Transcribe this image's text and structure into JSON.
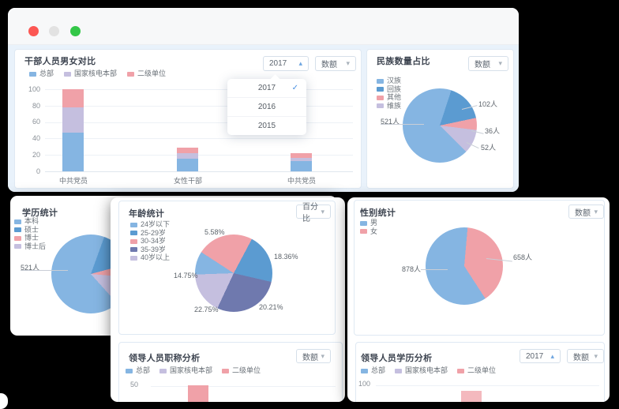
{
  "window": {
    "lights": [
      {
        "name": "close",
        "color": "#fc5753"
      },
      {
        "name": "minimize",
        "color": "#e2e2e2"
      },
      {
        "name": "zoom",
        "color": "#33c748"
      }
    ]
  },
  "icons": {
    "caret_down": "▾",
    "caret_up": "▴",
    "check": "✓"
  },
  "palette": {
    "lightblue": "#85b5e2",
    "blue": "#5b9bd1",
    "pink": "#f0a1a8",
    "purple": "#c5bfdf",
    "indigo": "#6f79ae",
    "accent": "#4a90e2"
  },
  "cards": {
    "compare": {
      "title": "干部人员男女对比",
      "year": "2017",
      "metric": "数额",
      "legend": [
        "总部",
        "国家核电本部",
        "二级单位"
      ],
      "yticks": [
        "100",
        "80",
        "60",
        "40",
        "20",
        "0"
      ],
      "xlabels": [
        "中共党员",
        "女性干部",
        "中共党员"
      ],
      "dropdown": [
        "2017",
        "2016",
        "2015"
      ],
      "dropdown_selected": "2017"
    },
    "ethnic": {
      "title": "民族数量占比",
      "metric": "数额",
      "legend": [
        "汉族",
        "回族",
        "其他",
        "维族"
      ],
      "labels": {
        "han": "521人",
        "hui": "102人",
        "qita": "36人",
        "wei": "52人"
      }
    },
    "education": {
      "title": "学历统计",
      "legend": [
        "本科",
        "硕士",
        "博士",
        "博士后"
      ],
      "label": "521人"
    },
    "age": {
      "title": "年龄统计",
      "metric": "百分比",
      "legend": [
        "24岁以下",
        "25-29岁",
        "30-34岁",
        "35-39岁",
        "40岁以上"
      ],
      "labels": {
        "p3034": "5.58%",
        "p2529": "18.36%",
        "p3539": "20.21%",
        "p40": "22.75%",
        "p24": "14.75%"
      }
    },
    "gender": {
      "title": "性别统计",
      "metric": "数额",
      "legend": [
        "男",
        "女"
      ],
      "labels": {
        "male": "878人",
        "female": "658人"
      }
    },
    "jobtitle": {
      "title": "领导人员职称分析",
      "metric": "数额",
      "legend": [
        "总部",
        "国家核电本部",
        "二级单位"
      ],
      "ytick": "50"
    },
    "eduanalysis": {
      "title": "领导人员学历分析",
      "year": "2017",
      "metric": "数额",
      "legend": [
        "总部",
        "国家核电本部",
        "二级单位"
      ],
      "ytick": "100"
    }
  },
  "pies": {
    "ethnic": [
      {
        "c": "#85b5e2",
        "a0": 0,
        "a1": 18
      },
      {
        "c": "#5b9bd1",
        "a0": 18,
        "a1": 78
      },
      {
        "c": "#f0a1a8",
        "a0": 78,
        "a1": 97
      },
      {
        "c": "#c5bfdf",
        "a0": 97,
        "a1": 135
      },
      {
        "c": "#85b5e2",
        "a0": 135,
        "a1": 360
      }
    ],
    "education": [
      {
        "c": "#85b5e2",
        "a0": 0,
        "a1": 20
      },
      {
        "c": "#5b9bd1",
        "a0": 20,
        "a1": 75
      },
      {
        "c": "#f0a1a8",
        "a0": 75,
        "a1": 95
      },
      {
        "c": "#c5bfdf",
        "a0": 95,
        "a1": 138
      },
      {
        "c": "#85b5e2",
        "a0": 138,
        "a1": 360
      }
    ],
    "age": [
      {
        "c": "#f0a1a8",
        "a0": 0,
        "a1": 28
      },
      {
        "c": "#5b9bd1",
        "a0": 28,
        "a1": 103
      },
      {
        "c": "#6f79ae",
        "a0": 103,
        "a1": 205
      },
      {
        "c": "#c5bfdf",
        "a0": 205,
        "a1": 268
      },
      {
        "c": "#85b5e2",
        "a0": 268,
        "a1": 303
      },
      {
        "c": "#f0a1a8",
        "a0": 303,
        "a1": 360
      }
    ],
    "gender": [
      {
        "c": "#85b5e2",
        "a0": 0,
        "a1": 5
      },
      {
        "c": "#f0a1a8",
        "a0": 5,
        "a1": 147
      },
      {
        "c": "#85b5e2",
        "a0": 147,
        "a1": 360
      }
    ]
  },
  "bars": {
    "compare": {
      "colors": [
        "#85b5e2",
        "#c5bfdf",
        "#f0a1a8"
      ],
      "values": [
        [
          47,
          31,
          22
        ],
        [
          15,
          7,
          7
        ],
        [
          13,
          3,
          6
        ]
      ]
    }
  },
  "chart_data": [
    {
      "id": "cadre-gender-compare",
      "type": "bar",
      "stacked": true,
      "title": "干部人员男女对比",
      "year_filter": "2017",
      "metric_filter": "数额",
      "categories": [
        "中共党员",
        "女性干部",
        "中共党员"
      ],
      "series": [
        {
          "name": "总部",
          "color": "#85b5e2",
          "values": [
            47,
            15,
            13
          ]
        },
        {
          "name": "国家核电本部",
          "color": "#c5bfdf",
          "values": [
            31,
            7,
            3
          ]
        },
        {
          "name": "二级单位",
          "color": "#f0a1a8",
          "values": [
            22,
            7,
            6
          ]
        }
      ],
      "ylim": [
        0,
        100
      ],
      "yticks": [
        0,
        20,
        40,
        60,
        80,
        100
      ],
      "legend_position": "top-left",
      "grid": true
    },
    {
      "id": "ethnic-share",
      "type": "pie",
      "title": "民族数量占比",
      "metric_filter": "数额",
      "slices": [
        {
          "label": "汉族",
          "value": 521,
          "unit": "人",
          "color": "#85b5e2"
        },
        {
          "label": "回族",
          "value": 102,
          "unit": "人",
          "color": "#5b9bd1"
        },
        {
          "label": "其他",
          "value": 36,
          "unit": "人",
          "color": "#f0a1a8"
        },
        {
          "label": "维族",
          "value": 52,
          "unit": "人",
          "color": "#c5bfdf"
        }
      ],
      "legend_position": "left"
    },
    {
      "id": "education-stats",
      "type": "pie",
      "title": "学历统计",
      "slices": [
        {
          "label": "本科",
          "value": 521,
          "unit": "人",
          "color": "#85b5e2"
        },
        {
          "label": "硕士",
          "value": null,
          "color": "#5b9bd1"
        },
        {
          "label": "博士",
          "value": null,
          "color": "#f0a1a8"
        },
        {
          "label": "博士后",
          "value": null,
          "color": "#c5bfdf"
        }
      ],
      "note": "card partially occluded by overlapping window; only 本科 label (521人) visible",
      "legend_position": "left"
    },
    {
      "id": "age-stats",
      "type": "pie",
      "title": "年龄统计",
      "metric_filter": "百分比",
      "slices": [
        {
          "label": "24岁以下",
          "value": 14.75,
          "unit": "%",
          "color": "#85b5e2"
        },
        {
          "label": "25-29岁",
          "value": 18.36,
          "unit": "%",
          "color": "#5b9bd1"
        },
        {
          "label": "30-34岁",
          "value": 5.58,
          "unit": "%",
          "color": "#f0a1a8"
        },
        {
          "label": "35-39岁",
          "value": 20.21,
          "unit": "%",
          "color": "#6f79ae"
        },
        {
          "label": "40岁以上",
          "value": 22.75,
          "unit": "%",
          "color": "#c5bfdf"
        }
      ],
      "legend_position": "left"
    },
    {
      "id": "gender-stats",
      "type": "pie",
      "title": "性别统计",
      "metric_filter": "数额",
      "slices": [
        {
          "label": "男",
          "value": 878,
          "unit": "人",
          "color": "#85b5e2"
        },
        {
          "label": "女",
          "value": 658,
          "unit": "人",
          "color": "#f0a1a8"
        }
      ],
      "legend_position": "left"
    },
    {
      "id": "leader-jobtitle-analysis",
      "type": "bar",
      "title": "领导人员职称分析",
      "metric_filter": "数额",
      "series_names": [
        "总部",
        "国家核电本部",
        "二级单位"
      ],
      "yticks_visible": [
        50
      ],
      "note": "chart clipped at bottom of screenshot; one 二级单位 (pink) bar partially visible"
    },
    {
      "id": "leader-education-analysis",
      "type": "bar",
      "title": "领导人员学历分析",
      "year_filter": "2017",
      "metric_filter": "数额",
      "series_names": [
        "总部",
        "国家核电本部",
        "二级单位"
      ],
      "yticks_visible": [
        100
      ],
      "note": "chart clipped at bottom of screenshot; one 二级单位 (pink) bar sliver visible"
    }
  ]
}
